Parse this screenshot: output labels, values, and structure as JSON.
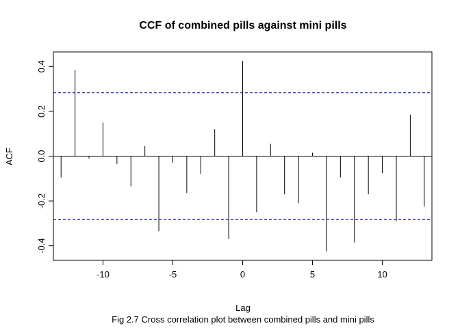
{
  "chart_data": {
    "type": "bar",
    "title": "CCF of combined pills against mini pills",
    "xlabel": "Lag",
    "ylabel": "ACF",
    "caption": "Fig 2.7 Cross correlation plot between combined pills and mini pills",
    "xlim": [
      -13.55,
      13.55
    ],
    "ylim": [
      -0.465,
      0.465
    ],
    "xticks": [
      -10,
      -5,
      0,
      5,
      10
    ],
    "xtick_labels": [
      "-10",
      "-5",
      "0",
      "5",
      "10"
    ],
    "yticks": [
      -0.4,
      -0.2,
      0.0,
      0.2,
      0.4
    ],
    "ytick_labels": [
      "-0.4",
      "-0.2",
      "0.0",
      "0.2",
      "0.4"
    ],
    "confidence_limit": 0.283,
    "confidence_color": "#0000cc",
    "grid": false,
    "legend": "none",
    "lags": [
      -13,
      -12,
      -11,
      -10,
      -9,
      -8,
      -7,
      -6,
      -5,
      -4,
      -3,
      -2,
      -1,
      0,
      1,
      2,
      3,
      4,
      5,
      6,
      7,
      8,
      9,
      10,
      11,
      12,
      13
    ],
    "values": [
      -0.095,
      0.385,
      -0.01,
      0.15,
      -0.035,
      -0.135,
      0.045,
      -0.335,
      -0.03,
      -0.165,
      -0.08,
      0.12,
      -0.37,
      0.425,
      -0.25,
      0.055,
      -0.17,
      -0.21,
      0.015,
      -0.425,
      -0.095,
      -0.385,
      -0.17,
      -0.075,
      -0.29,
      0.185,
      -0.225
    ]
  }
}
